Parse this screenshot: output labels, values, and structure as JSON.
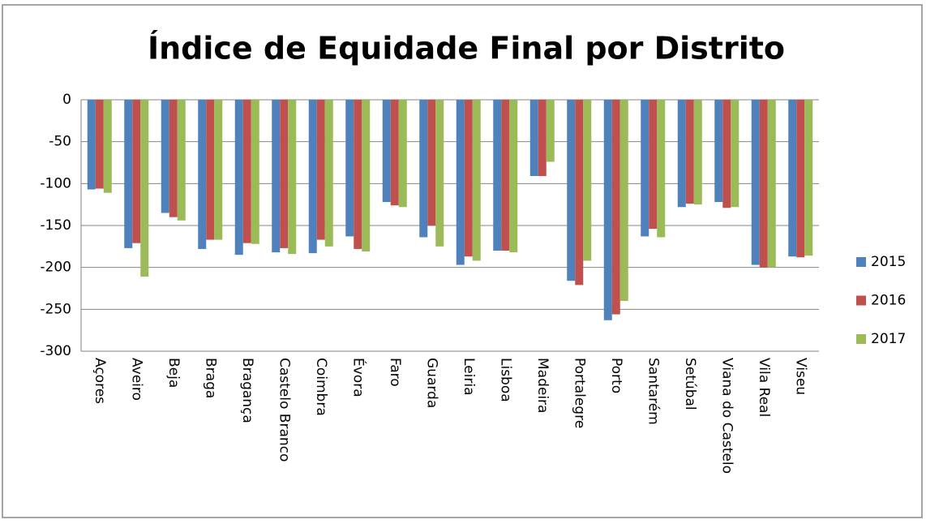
{
  "chart_data": {
    "type": "bar",
    "title": "Índice de Equidade Final por Distrito",
    "categories": [
      "Açores",
      "Aveiro",
      "Beja",
      "Braga",
      "Bragança",
      "Castelo Branco",
      "Coimbra",
      "Évora",
      "Faro",
      "Guarda",
      "Leiria",
      "Lisboa",
      "Madeira",
      "Portalegre",
      "Porto",
      "Santarém",
      "Setúbal",
      "Viana do Castelo",
      "Vila Real",
      "Viseu"
    ],
    "series": [
      {
        "name": "2015",
        "color": "#4f81bd",
        "values": [
          -107,
          -177,
          -135,
          -178,
          -185,
          -182,
          -183,
          -163,
          -122,
          -164,
          -197,
          -180,
          -91,
          -216,
          -263,
          -163,
          -128,
          -122,
          -197,
          -187
        ]
      },
      {
        "name": "2016",
        "color": "#c0504d",
        "values": [
          -106,
          -171,
          -140,
          -167,
          -171,
          -177,
          -167,
          -178,
          -126,
          -150,
          -187,
          -180,
          -91,
          -221,
          -256,
          -154,
          -124,
          -129,
          -200,
          -188
        ]
      },
      {
        "name": "2017",
        "color": "#9bbb59",
        "values": [
          -111,
          -211,
          -144,
          -167,
          -172,
          -184,
          -175,
          -181,
          -128,
          -175,
          -192,
          -182,
          -74,
          -192,
          -240,
          -164,
          -125,
          -128,
          -200,
          -186
        ]
      }
    ],
    "ylim": [
      -300,
      0
    ],
    "yticks": [
      0,
      -50,
      -100,
      -150,
      -200,
      -250,
      -300
    ],
    "grid": true,
    "legend": "right"
  }
}
